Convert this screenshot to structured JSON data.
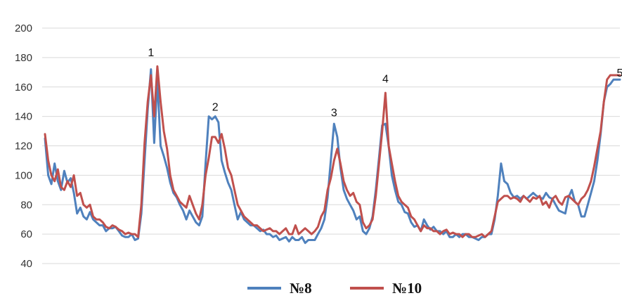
{
  "chart_data": {
    "type": "line",
    "title": "",
    "xlabel": "",
    "ylabel": "",
    "ylim": [
      40,
      200
    ],
    "yticks": [
      40,
      60,
      80,
      100,
      120,
      140,
      160,
      180,
      200
    ],
    "grid": true,
    "legend_position": "bottom-center",
    "x_points": 180,
    "series": [
      {
        "name": "№8",
        "color": "#4f81bd",
        "values": [
          125,
          100,
          94,
          108,
          96,
          90,
          103,
          95,
          98,
          88,
          74,
          78,
          72,
          70,
          75,
          70,
          68,
          66,
          66,
          62,
          64,
          64,
          65,
          62,
          59,
          58,
          58,
          60,
          56,
          57,
          74,
          110,
          145,
          172,
          122,
          165,
          120,
          113,
          105,
          95,
          88,
          85,
          80,
          76,
          70,
          76,
          72,
          68,
          66,
          72,
          108,
          140,
          138,
          140,
          136,
          110,
          102,
          95,
          90,
          80,
          70,
          75,
          70,
          68,
          66,
          66,
          64,
          62,
          63,
          60,
          60,
          58,
          59,
          56,
          57,
          58,
          55,
          58,
          56,
          56,
          58,
          54,
          56,
          56,
          56,
          60,
          64,
          70,
          85,
          110,
          135,
          126,
          105,
          90,
          84,
          80,
          76,
          70,
          72,
          62,
          60,
          64,
          72,
          90,
          112,
          134,
          135,
          120,
          100,
          90,
          82,
          80,
          75,
          74,
          68,
          65,
          66,
          62,
          70,
          66,
          63,
          65,
          62,
          62,
          60,
          62,
          58,
          58,
          60,
          58,
          60,
          60,
          58,
          58,
          57,
          56,
          58,
          58,
          60,
          60,
          70,
          86,
          108,
          96,
          94,
          88,
          85,
          86,
          84,
          86,
          84,
          86,
          88,
          86,
          85,
          84,
          88,
          85,
          84,
          80,
          76,
          75,
          74,
          85,
          90,
          82,
          80,
          72,
          72,
          80,
          88,
          96,
          110,
          128,
          150,
          160,
          162,
          165,
          165,
          165
        ],
        "data_name": "series-no8"
      },
      {
        "name": "№10",
        "color": "#c0504d",
        "values": [
          128,
          110,
          100,
          96,
          104,
          92,
          90,
          96,
          92,
          100,
          86,
          88,
          80,
          78,
          80,
          72,
          70,
          70,
          68,
          65,
          64,
          66,
          65,
          63,
          62,
          60,
          61,
          60,
          60,
          58,
          80,
          122,
          150,
          168,
          140,
          174,
          150,
          130,
          118,
          100,
          90,
          86,
          82,
          80,
          78,
          86,
          80,
          74,
          70,
          80,
          100,
          112,
          126,
          126,
          122,
          128,
          118,
          105,
          100,
          90,
          80,
          76,
          72,
          70,
          68,
          66,
          66,
          64,
          62,
          63,
          64,
          62,
          62,
          60,
          62,
          64,
          60,
          60,
          66,
          60,
          62,
          64,
          62,
          60,
          62,
          65,
          72,
          76,
          90,
          98,
          110,
          118,
          108,
          96,
          90,
          86,
          88,
          82,
          80,
          68,
          64,
          66,
          70,
          86,
          108,
          130,
          156,
          120,
          108,
          96,
          86,
          82,
          80,
          78,
          72,
          70,
          66,
          62,
          66,
          64,
          64,
          62,
          62,
          60,
          62,
          63,
          60,
          61,
          60,
          60,
          58,
          60,
          60,
          58,
          58,
          59,
          60,
          58,
          60,
          62,
          72,
          82,
          84,
          86,
          86,
          84,
          85,
          84,
          82,
          86,
          84,
          82,
          85,
          84,
          86,
          80,
          82,
          78,
          84,
          86,
          82,
          80,
          85,
          86,
          84,
          82,
          80,
          84,
          86,
          90,
          96,
          106,
          118,
          130,
          150,
          165,
          168,
          168,
          168,
          168
        ],
        "data_name": "series-no10"
      }
    ],
    "annotations": [
      {
        "text": "1",
        "x_index": 33,
        "y": 180
      },
      {
        "text": "2",
        "x_index": 53,
        "y": 143
      },
      {
        "text": "3",
        "x_index": 90,
        "y": 139
      },
      {
        "text": "4",
        "x_index": 106,
        "y": 162
      },
      {
        "text": "5",
        "x_index": 179,
        "y": 166
      }
    ]
  }
}
